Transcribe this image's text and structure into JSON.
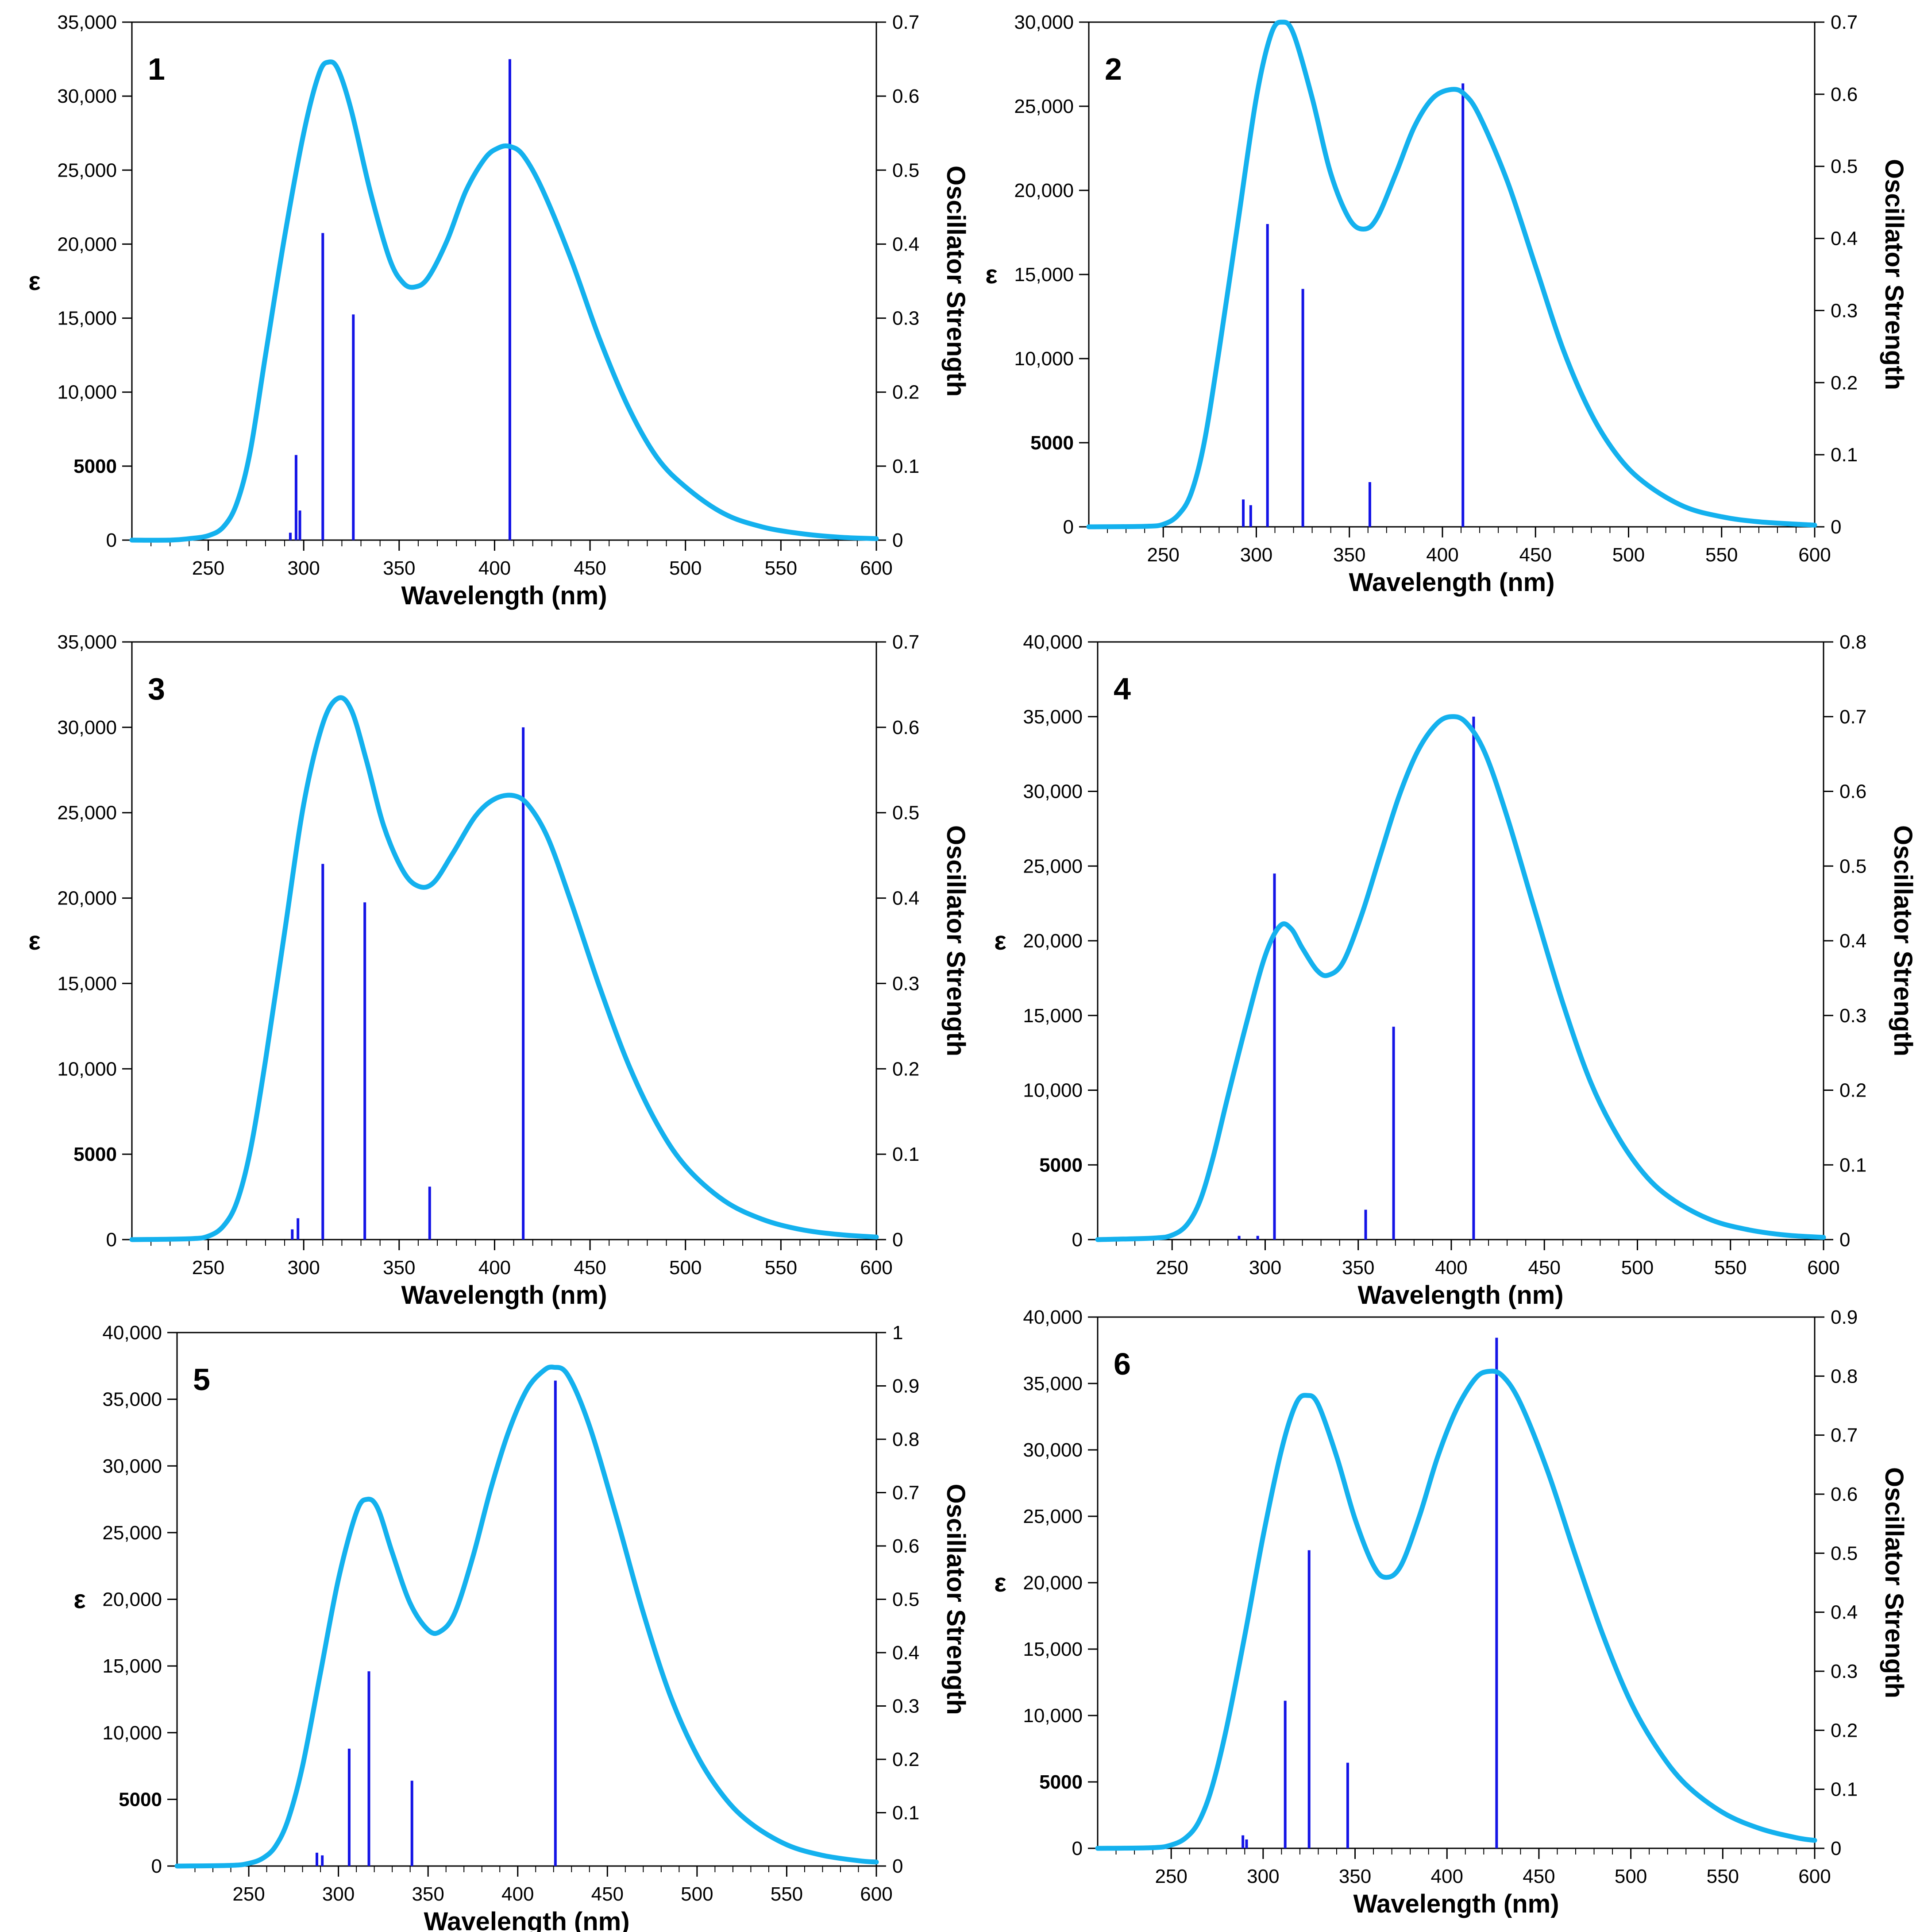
{
  "colors": {
    "curve": "#14B1EE",
    "stick": "#1414E6",
    "axis": "#000000",
    "background": "#FFFFFF"
  },
  "chart_data": [
    {
      "type": "line",
      "label": "1",
      "xlabel": "Wavelength (nm)",
      "ylabel": "ε",
      "y2label": "Oscillator Strength",
      "xlim": [
        210,
        600
      ],
      "ylim": [
        0,
        35000
      ],
      "y2lim": [
        0,
        0.7
      ],
      "xticks": [
        250,
        300,
        350,
        400,
        450,
        500,
        550,
        600
      ],
      "yticks": [
        0,
        5000,
        10000,
        15000,
        20000,
        25000,
        30000,
        35000
      ],
      "yticklabels": [
        "0",
        "5000",
        "10,000",
        "15,000",
        "20,000",
        "25,000",
        "30,000",
        "35,000"
      ],
      "y2ticks": [
        0,
        0.1,
        0.2,
        0.3,
        0.4,
        0.5,
        0.6,
        0.7
      ],
      "y2ticklabels": [
        "0",
        "0.1",
        "0.2",
        "0.3",
        "0.4",
        "0.5",
        "0.6",
        "0.7"
      ],
      "spectrum": [
        [
          210,
          0
        ],
        [
          230,
          0
        ],
        [
          240,
          100
        ],
        [
          250,
          300
        ],
        [
          258,
          900
        ],
        [
          265,
          2500
        ],
        [
          272,
          6000
        ],
        [
          280,
          12500
        ],
        [
          290,
          20500
        ],
        [
          300,
          27500
        ],
        [
          308,
          31500
        ],
        [
          313,
          32300
        ],
        [
          318,
          31800
        ],
        [
          325,
          29000
        ],
        [
          335,
          23500
        ],
        [
          345,
          19000
        ],
        [
          352,
          17400
        ],
        [
          358,
          17100
        ],
        [
          365,
          17700
        ],
        [
          375,
          20200
        ],
        [
          385,
          23600
        ],
        [
          395,
          25800
        ],
        [
          402,
          26500
        ],
        [
          408,
          26600
        ],
        [
          415,
          26000
        ],
        [
          425,
          23700
        ],
        [
          440,
          19000
        ],
        [
          455,
          13600
        ],
        [
          470,
          9000
        ],
        [
          485,
          5600
        ],
        [
          500,
          3600
        ],
        [
          520,
          1800
        ],
        [
          540,
          900
        ],
        [
          560,
          450
        ],
        [
          580,
          200
        ],
        [
          600,
          100
        ]
      ],
      "sticks": [
        [
          293,
          0.01
        ],
        [
          296,
          0.115
        ],
        [
          298,
          0.04
        ],
        [
          310,
          0.415
        ],
        [
          326,
          0.305
        ],
        [
          408,
          0.65
        ]
      ]
    },
    {
      "type": "line",
      "label": "2",
      "xlabel": "Wavelength (nm)",
      "ylabel": "ε",
      "y2label": "Oscillator Strength",
      "xlim": [
        210,
        600
      ],
      "ylim": [
        0,
        30000
      ],
      "y2lim": [
        0,
        0.7
      ],
      "xticks": [
        250,
        300,
        350,
        400,
        450,
        500,
        550,
        600
      ],
      "yticks": [
        0,
        5000,
        10000,
        15000,
        20000,
        25000,
        30000
      ],
      "yticklabels": [
        "0",
        "5000",
        "10,000",
        "15,000",
        "20,000",
        "25,000",
        "30,000"
      ],
      "y2ticks": [
        0,
        0.1,
        0.2,
        0.3,
        0.4,
        0.5,
        0.6,
        0.7
      ],
      "y2ticklabels": [
        "0",
        "0.1",
        "0.2",
        "0.3",
        "0.4",
        "0.5",
        "0.6",
        "0.7"
      ],
      "spectrum": [
        [
          210,
          0
        ],
        [
          240,
          30
        ],
        [
          250,
          150
        ],
        [
          258,
          700
        ],
        [
          265,
          2000
        ],
        [
          272,
          5000
        ],
        [
          280,
          10500
        ],
        [
          290,
          18000
        ],
        [
          300,
          25500
        ],
        [
          308,
          29300
        ],
        [
          314,
          30000
        ],
        [
          320,
          29300
        ],
        [
          330,
          25500
        ],
        [
          340,
          21000
        ],
        [
          350,
          18300
        ],
        [
          358,
          17700
        ],
        [
          365,
          18400
        ],
        [
          375,
          21000
        ],
        [
          385,
          23800
        ],
        [
          395,
          25500
        ],
        [
          405,
          26000
        ],
        [
          412,
          25700
        ],
        [
          420,
          24400
        ],
        [
          435,
          20500
        ],
        [
          450,
          15500
        ],
        [
          465,
          10500
        ],
        [
          480,
          6700
        ],
        [
          495,
          4100
        ],
        [
          510,
          2500
        ],
        [
          530,
          1200
        ],
        [
          550,
          600
        ],
        [
          570,
          300
        ],
        [
          600,
          100
        ]
      ],
      "sticks": [
        [
          293,
          0.038
        ],
        [
          297,
          0.03
        ],
        [
          306,
          0.42
        ],
        [
          325,
          0.33
        ],
        [
          361,
          0.062
        ],
        [
          411,
          0.615
        ]
      ]
    },
    {
      "type": "line",
      "label": "3",
      "xlabel": "Wavelength (nm)",
      "ylabel": "ε",
      "y2label": "Oscillator Strength",
      "xlim": [
        210,
        600
      ],
      "ylim": [
        0,
        35000
      ],
      "y2lim": [
        0,
        0.7
      ],
      "xticks": [
        250,
        300,
        350,
        400,
        450,
        500,
        550,
        600
      ],
      "yticks": [
        0,
        5000,
        10000,
        15000,
        20000,
        25000,
        30000,
        35000
      ],
      "yticklabels": [
        "0",
        "5000",
        "10,000",
        "15,000",
        "20,000",
        "25,000",
        "30,000",
        "35,000"
      ],
      "y2ticks": [
        0,
        0.1,
        0.2,
        0.3,
        0.4,
        0.5,
        0.6,
        0.7
      ],
      "y2ticklabels": [
        "0",
        "0.1",
        "0.2",
        "0.3",
        "0.4",
        "0.5",
        "0.6",
        "0.7"
      ],
      "spectrum": [
        [
          210,
          0
        ],
        [
          240,
          50
        ],
        [
          250,
          200
        ],
        [
          258,
          800
        ],
        [
          265,
          2200
        ],
        [
          272,
          5200
        ],
        [
          280,
          10500
        ],
        [
          290,
          18000
        ],
        [
          300,
          25500
        ],
        [
          310,
          30200
        ],
        [
          318,
          31700
        ],
        [
          325,
          31000
        ],
        [
          333,
          28000
        ],
        [
          342,
          24200
        ],
        [
          352,
          21600
        ],
        [
          360,
          20700
        ],
        [
          368,
          20900
        ],
        [
          378,
          22600
        ],
        [
          390,
          24800
        ],
        [
          400,
          25800
        ],
        [
          410,
          26000
        ],
        [
          418,
          25400
        ],
        [
          428,
          23500
        ],
        [
          440,
          19800
        ],
        [
          455,
          14800
        ],
        [
          470,
          10300
        ],
        [
          485,
          6800
        ],
        [
          500,
          4300
        ],
        [
          520,
          2300
        ],
        [
          540,
          1200
        ],
        [
          560,
          600
        ],
        [
          580,
          300
        ],
        [
          600,
          150
        ]
      ],
      "sticks": [
        [
          294,
          0.012
        ],
        [
          297,
          0.025
        ],
        [
          310,
          0.44
        ],
        [
          332,
          0.395
        ],
        [
          366,
          0.062
        ],
        [
          415,
          0.6
        ]
      ]
    },
    {
      "type": "line",
      "label": "4",
      "xlabel": "Wavelength (nm)",
      "ylabel": "ε",
      "y2label": "Oscillator Strength",
      "xlim": [
        210,
        600
      ],
      "ylim": [
        0,
        40000
      ],
      "y2lim": [
        0,
        0.8
      ],
      "xticks": [
        250,
        300,
        350,
        400,
        450,
        500,
        550,
        600
      ],
      "yticks": [
        0,
        5000,
        10000,
        15000,
        20000,
        25000,
        30000,
        35000,
        40000
      ],
      "yticklabels": [
        "0",
        "5000",
        "10,000",
        "15,000",
        "20,000",
        "25,000",
        "30,000",
        "35,000",
        "40,000"
      ],
      "y2ticks": [
        0,
        0.1,
        0.2,
        0.3,
        0.4,
        0.5,
        0.6,
        0.7,
        0.8
      ],
      "y2ticklabels": [
        "0",
        "0.1",
        "0.2",
        "0.3",
        "0.4",
        "0.5",
        "0.6",
        "0.7",
        "0.8"
      ],
      "spectrum": [
        [
          210,
          0
        ],
        [
          240,
          100
        ],
        [
          250,
          300
        ],
        [
          258,
          1000
        ],
        [
          265,
          2600
        ],
        [
          272,
          5500
        ],
        [
          280,
          9600
        ],
        [
          290,
          14500
        ],
        [
          300,
          19000
        ],
        [
          308,
          21000
        ],
        [
          314,
          20800
        ],
        [
          320,
          19500
        ],
        [
          328,
          18000
        ],
        [
          334,
          17700
        ],
        [
          342,
          18600
        ],
        [
          352,
          21800
        ],
        [
          362,
          25800
        ],
        [
          372,
          29700
        ],
        [
          382,
          32700
        ],
        [
          392,
          34500
        ],
        [
          400,
          35000
        ],
        [
          408,
          34600
        ],
        [
          418,
          32600
        ],
        [
          430,
          28300
        ],
        [
          445,
          22000
        ],
        [
          460,
          15800
        ],
        [
          475,
          10500
        ],
        [
          490,
          6800
        ],
        [
          505,
          4200
        ],
        [
          520,
          2600
        ],
        [
          540,
          1300
        ],
        [
          560,
          650
        ],
        [
          580,
          300
        ],
        [
          600,
          150
        ]
      ],
      "sticks": [
        [
          286,
          0.005
        ],
        [
          296,
          0.005
        ],
        [
          305,
          0.49
        ],
        [
          354,
          0.04
        ],
        [
          369,
          0.285
        ],
        [
          412,
          0.7
        ]
      ]
    },
    {
      "type": "line",
      "label": "5",
      "xlabel": "Wavelength (nm)",
      "ylabel": "ε",
      "y2label": "Oscillator Strength",
      "xlim": [
        210,
        600
      ],
      "ylim": [
        0,
        40000
      ],
      "y2lim": [
        0,
        1
      ],
      "xticks": [
        250,
        300,
        350,
        400,
        450,
        500,
        550,
        600
      ],
      "yticks": [
        0,
        5000,
        10000,
        15000,
        20000,
        25000,
        30000,
        35000,
        40000
      ],
      "yticklabels": [
        "0",
        "5000",
        "10,000",
        "15,000",
        "20,000",
        "25,000",
        "30,000",
        "35,000",
        "40,000"
      ],
      "y2ticks": [
        0,
        0.1,
        0.2,
        0.3,
        0.4,
        0.5,
        0.6,
        0.7,
        0.8,
        0.9,
        1
      ],
      "y2ticklabels": [
        "0",
        "0.1",
        "0.2",
        "0.3",
        "0.4",
        "0.5",
        "0.6",
        "0.7",
        "0.8",
        "0.9",
        "1"
      ],
      "spectrum": [
        [
          210,
          0
        ],
        [
          240,
          50
        ],
        [
          250,
          200
        ],
        [
          258,
          600
        ],
        [
          265,
          1500
        ],
        [
          272,
          3500
        ],
        [
          280,
          7500
        ],
        [
          290,
          14500
        ],
        [
          300,
          21500
        ],
        [
          310,
          26500
        ],
        [
          316,
          27500
        ],
        [
          322,
          26800
        ],
        [
          330,
          23500
        ],
        [
          340,
          19700
        ],
        [
          350,
          17700
        ],
        [
          357,
          17600
        ],
        [
          365,
          19000
        ],
        [
          375,
          23200
        ],
        [
          385,
          28300
        ],
        [
          395,
          32600
        ],
        [
          405,
          35700
        ],
        [
          414,
          37100
        ],
        [
          420,
          37400
        ],
        [
          428,
          36800
        ],
        [
          440,
          33000
        ],
        [
          455,
          26200
        ],
        [
          470,
          19000
        ],
        [
          485,
          12800
        ],
        [
          500,
          8300
        ],
        [
          515,
          5200
        ],
        [
          530,
          3200
        ],
        [
          550,
          1600
        ],
        [
          570,
          800
        ],
        [
          590,
          400
        ],
        [
          600,
          300
        ]
      ],
      "sticks": [
        [
          288,
          0.025
        ],
        [
          291,
          0.02
        ],
        [
          306,
          0.22
        ],
        [
          317,
          0.365
        ],
        [
          341,
          0.16
        ],
        [
          421,
          0.91
        ]
      ]
    },
    {
      "type": "line",
      "label": "6",
      "xlabel": "Wavelength (nm)",
      "ylabel": "ε",
      "y2label": "Oscillator Strength",
      "xlim": [
        210,
        600
      ],
      "ylim": [
        0,
        40000
      ],
      "y2lim": [
        0,
        0.9
      ],
      "xticks": [
        250,
        300,
        350,
        400,
        450,
        500,
        550,
        600
      ],
      "yticks": [
        0,
        5000,
        10000,
        15000,
        20000,
        25000,
        30000,
        35000,
        40000
      ],
      "yticklabels": [
        "0",
        "5000",
        "10,000",
        "15,000",
        "20,000",
        "25,000",
        "30,000",
        "35,000",
        "40,000"
      ],
      "y2ticks": [
        0,
        0.1,
        0.2,
        0.3,
        0.4,
        0.5,
        0.6,
        0.7,
        0.8,
        0.9
      ],
      "y2ticklabels": [
        "0",
        "0.1",
        "0.2",
        "0.3",
        "0.4",
        "0.5",
        "0.6",
        "0.7",
        "0.8",
        "0.9"
      ],
      "spectrum": [
        [
          210,
          0
        ],
        [
          240,
          50
        ],
        [
          250,
          250
        ],
        [
          258,
          800
        ],
        [
          265,
          2000
        ],
        [
          272,
          4500
        ],
        [
          280,
          9000
        ],
        [
          290,
          16000
        ],
        [
          300,
          23500
        ],
        [
          310,
          30000
        ],
        [
          318,
          33500
        ],
        [
          324,
          34100
        ],
        [
          330,
          33400
        ],
        [
          340,
          29500
        ],
        [
          350,
          24800
        ],
        [
          360,
          21300
        ],
        [
          367,
          20400
        ],
        [
          375,
          21300
        ],
        [
          385,
          25000
        ],
        [
          395,
          29500
        ],
        [
          405,
          33000
        ],
        [
          415,
          35300
        ],
        [
          422,
          35900
        ],
        [
          430,
          35600
        ],
        [
          440,
          33500
        ],
        [
          455,
          28300
        ],
        [
          470,
          22000
        ],
        [
          485,
          16000
        ],
        [
          500,
          11000
        ],
        [
          515,
          7400
        ],
        [
          530,
          4800
        ],
        [
          550,
          2700
        ],
        [
          570,
          1500
        ],
        [
          590,
          800
        ],
        [
          600,
          600
        ]
      ],
      "sticks": [
        [
          289,
          0.022
        ],
        [
          291,
          0.015
        ],
        [
          312,
          0.25
        ],
        [
          325,
          0.505
        ],
        [
          346,
          0.145
        ],
        [
          427,
          0.865
        ]
      ]
    }
  ]
}
